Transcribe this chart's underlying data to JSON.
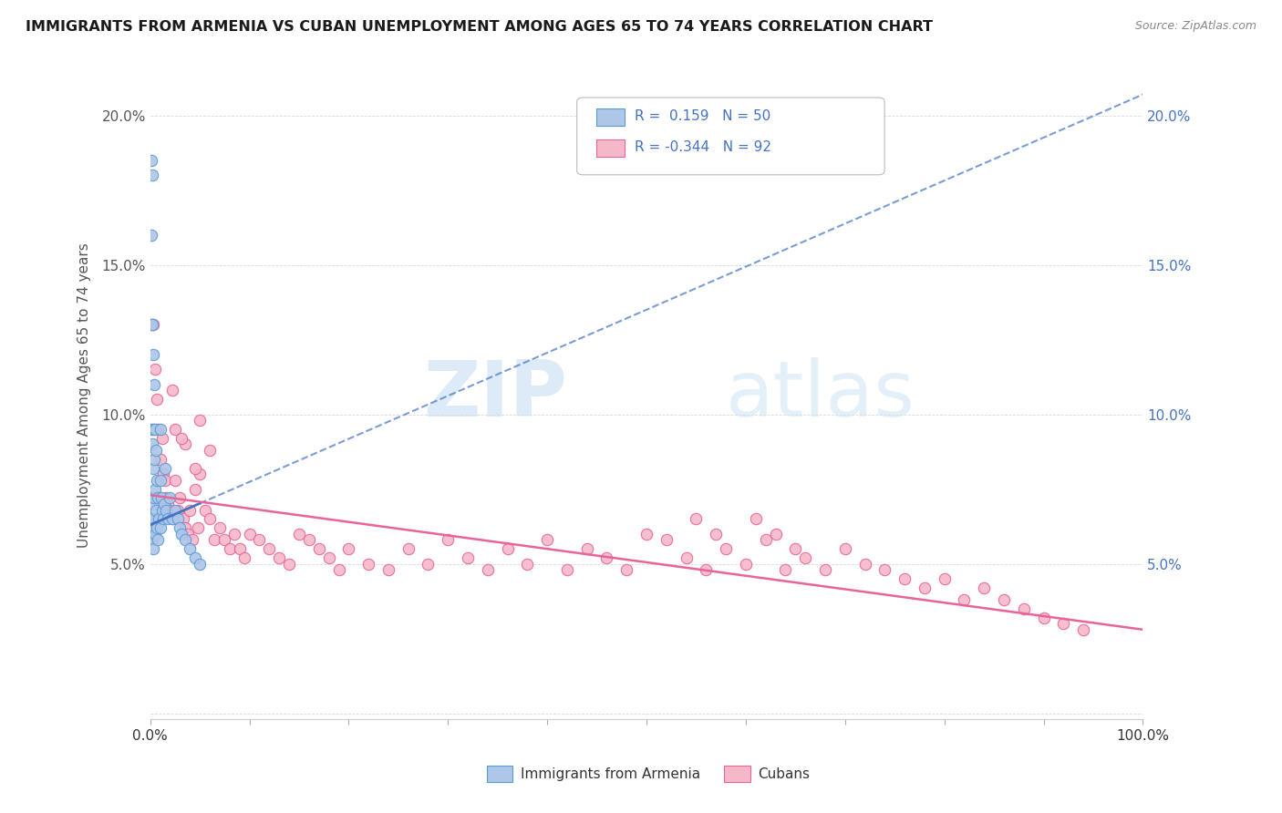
{
  "title": "IMMIGRANTS FROM ARMENIA VS CUBAN UNEMPLOYMENT AMONG AGES 65 TO 74 YEARS CORRELATION CHART",
  "source": "Source: ZipAtlas.com",
  "ylabel": "Unemployment Among Ages 65 to 74 years",
  "xlim": [
    0,
    1.0
  ],
  "ylim": [
    -0.002,
    0.215
  ],
  "xticks": [
    0.0,
    0.1,
    0.2,
    0.3,
    0.4,
    0.5,
    0.6,
    0.7,
    0.8,
    0.9,
    1.0
  ],
  "xticklabels_sparse": {
    "0": "0.0%",
    "10": "100.0%"
  },
  "yticks": [
    0.0,
    0.05,
    0.1,
    0.15,
    0.2
  ],
  "yticklabels_left": [
    "",
    "5.0%",
    "10.0%",
    "15.0%",
    "20.0%"
  ],
  "yticklabels_right": [
    "",
    "5.0%",
    "10.0%",
    "15.0%",
    "20.0%"
  ],
  "legend_R1": "R =  0.159",
  "legend_N1": "N = 50",
  "legend_R2": "R = -0.344",
  "legend_N2": "N = 92",
  "watermark_zip": "ZIP",
  "watermark_atlas": "atlas",
  "color_armenia": "#aec6e8",
  "color_cuba": "#f5b8c8",
  "color_armenia_border": "#5b9bd5",
  "color_cuba_border": "#e8649a",
  "color_armenia_trend": "#4472c4",
  "color_cuba_trend": "#e8649a",
  "color_title": "#1a1a1a",
  "color_legend_text": "#4472c4",
  "color_right_axis": "#4472c4",
  "color_left_axis": "#555555",
  "color_grid": "#d0d0d0",
  "background_color": "#ffffff",
  "armenia_trend_x0": 0.0,
  "armenia_trend_y0": 0.063,
  "armenia_trend_x1": 1.0,
  "armenia_trend_y1": 0.207,
  "cuba_trend_x0": 0.0,
  "cuba_trend_y0": 0.073,
  "cuba_trend_x1": 1.0,
  "cuba_trend_y1": 0.028,
  "armenia_x": [
    0.001,
    0.001,
    0.001,
    0.001,
    0.001,
    0.002,
    0.002,
    0.002,
    0.002,
    0.002,
    0.002,
    0.003,
    0.003,
    0.003,
    0.003,
    0.003,
    0.004,
    0.004,
    0.004,
    0.004,
    0.005,
    0.005,
    0.005,
    0.006,
    0.006,
    0.007,
    0.007,
    0.008,
    0.008,
    0.009,
    0.01,
    0.01,
    0.01,
    0.011,
    0.012,
    0.013,
    0.014,
    0.015,
    0.016,
    0.018,
    0.02,
    0.022,
    0.025,
    0.028,
    0.03,
    0.032,
    0.035,
    0.04,
    0.045,
    0.05
  ],
  "armenia_y": [
    0.185,
    0.16,
    0.13,
    0.095,
    0.065,
    0.18,
    0.13,
    0.09,
    0.072,
    0.065,
    0.058,
    0.12,
    0.095,
    0.082,
    0.07,
    0.055,
    0.11,
    0.085,
    0.072,
    0.062,
    0.095,
    0.075,
    0.06,
    0.088,
    0.068,
    0.078,
    0.062,
    0.072,
    0.058,
    0.065,
    0.095,
    0.078,
    0.062,
    0.072,
    0.068,
    0.065,
    0.07,
    0.082,
    0.068,
    0.065,
    0.072,
    0.065,
    0.068,
    0.065,
    0.062,
    0.06,
    0.058,
    0.055,
    0.052,
    0.05
  ],
  "cuba_x": [
    0.003,
    0.005,
    0.007,
    0.008,
    0.01,
    0.012,
    0.013,
    0.015,
    0.016,
    0.018,
    0.02,
    0.022,
    0.025,
    0.028,
    0.03,
    0.033,
    0.035,
    0.038,
    0.04,
    0.043,
    0.045,
    0.048,
    0.05,
    0.055,
    0.06,
    0.065,
    0.07,
    0.075,
    0.08,
    0.085,
    0.09,
    0.095,
    0.1,
    0.11,
    0.12,
    0.13,
    0.14,
    0.15,
    0.16,
    0.17,
    0.18,
    0.19,
    0.2,
    0.22,
    0.24,
    0.26,
    0.28,
    0.3,
    0.32,
    0.34,
    0.36,
    0.38,
    0.4,
    0.42,
    0.44,
    0.46,
    0.48,
    0.5,
    0.52,
    0.54,
    0.56,
    0.58,
    0.6,
    0.62,
    0.64,
    0.66,
    0.68,
    0.7,
    0.72,
    0.74,
    0.76,
    0.78,
    0.8,
    0.82,
    0.84,
    0.86,
    0.88,
    0.9,
    0.92,
    0.94,
    0.025,
    0.035,
    0.045,
    0.022,
    0.032,
    0.55,
    0.57,
    0.61,
    0.63,
    0.65,
    0.05,
    0.06
  ],
  "cuba_y": [
    0.13,
    0.115,
    0.105,
    0.095,
    0.085,
    0.092,
    0.08,
    0.078,
    0.072,
    0.07,
    0.068,
    0.065,
    0.078,
    0.068,
    0.072,
    0.065,
    0.062,
    0.06,
    0.068,
    0.058,
    0.075,
    0.062,
    0.08,
    0.068,
    0.065,
    0.058,
    0.062,
    0.058,
    0.055,
    0.06,
    0.055,
    0.052,
    0.06,
    0.058,
    0.055,
    0.052,
    0.05,
    0.06,
    0.058,
    0.055,
    0.052,
    0.048,
    0.055,
    0.05,
    0.048,
    0.055,
    0.05,
    0.058,
    0.052,
    0.048,
    0.055,
    0.05,
    0.058,
    0.048,
    0.055,
    0.052,
    0.048,
    0.06,
    0.058,
    0.052,
    0.048,
    0.055,
    0.05,
    0.058,
    0.048,
    0.052,
    0.048,
    0.055,
    0.05,
    0.048,
    0.045,
    0.042,
    0.045,
    0.038,
    0.042,
    0.038,
    0.035,
    0.032,
    0.03,
    0.028,
    0.095,
    0.09,
    0.082,
    0.108,
    0.092,
    0.065,
    0.06,
    0.065,
    0.06,
    0.055,
    0.098,
    0.088
  ]
}
